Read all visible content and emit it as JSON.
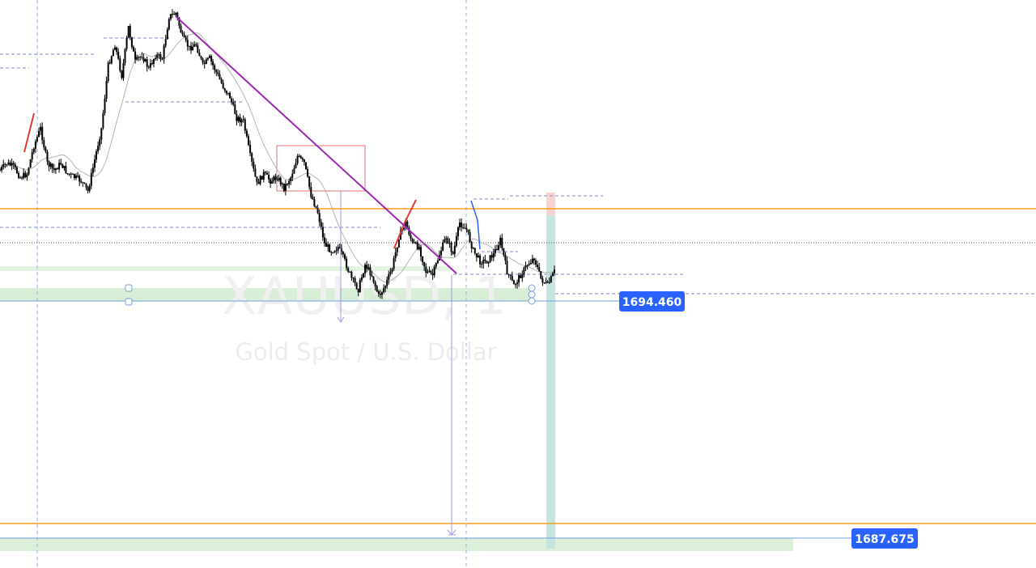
{
  "watermark": {
    "symbol": "XAUUSD, 1",
    "description": "Gold Spot / U.S. Dollar"
  },
  "price_labels": {
    "upper": "1694.460",
    "lower": "1687.675"
  },
  "colors": {
    "background": "#ffffff",
    "candle": "#000000",
    "moving_average": "#b4b4b4",
    "trendline": "#9c27b0",
    "horizontal_level": "#f59e1b",
    "dashed_guides": "#7f86c9",
    "vertical_guides": "#8fb3e0",
    "demand_zone": "#d8eed6",
    "position_target": "#b9ddd8",
    "position_stop": "#f8c8c4",
    "label_bg": "#2962ff",
    "rect_box": "#e0707a",
    "impulse_leg": "#e53935",
    "measure_line": "#9d9be0"
  },
  "chart_data": {
    "type": "candlestick",
    "symbol": "XAUUSD",
    "timeframe": "1",
    "y_reference_levels": [
      1694.46,
      1687.675
    ],
    "close_path_y": [
      1698.2,
      1698.4,
      1698.3,
      1698.0,
      1698.1,
      1698.9,
      1699.4,
      1698.4,
      1698.2,
      1698.4,
      1698.1,
      1698.0,
      1697.9,
      1697.6,
      1698.5,
      1699.4,
      1701.2,
      1701.8,
      1700.9,
      1702.3,
      1701.3,
      1701.5,
      1701.1,
      1701.5,
      1701.4,
      1702.6,
      1702.7,
      1702.0,
      1701.7,
      1701.8,
      1701.2,
      1701.4,
      1701.0,
      1700.6,
      1700.3,
      1699.7,
      1699.6,
      1698.6,
      1697.8,
      1698.1,
      1697.9,
      1698.0,
      1697.7,
      1698.0,
      1698.6,
      1698.4,
      1697.5,
      1697.0,
      1696.1,
      1695.9,
      1696.0,
      1695.6,
      1695.1,
      1694.8,
      1695.5,
      1695.2,
      1694.6,
      1694.9,
      1695.4,
      1696.3,
      1696.7,
      1696.1,
      1696.0,
      1695.3,
      1695.2,
      1695.8,
      1696.3,
      1695.8,
      1696.7,
      1696.5,
      1695.9,
      1695.6,
      1695.6,
      1695.8,
      1696.2,
      1695.3,
      1694.9,
      1695.2,
      1695.5,
      1695.7,
      1695.1,
      1694.9,
      1695.3
    ]
  }
}
